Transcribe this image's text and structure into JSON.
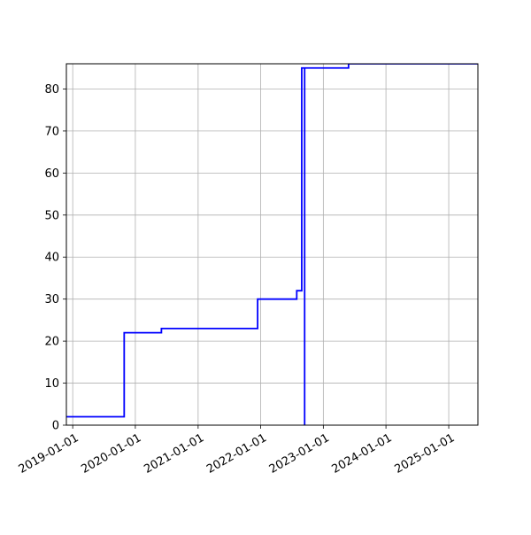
{
  "chart_data": {
    "type": "line",
    "line_style": "step",
    "title": "",
    "xlabel": "",
    "ylabel": "",
    "x_type": "date",
    "xlim": [
      "2018-11-25",
      "2025-06-20"
    ],
    "ylim": [
      0,
      86
    ],
    "x_ticks": [
      "2019-01-01",
      "2020-01-01",
      "2021-01-01",
      "2022-01-01",
      "2023-01-01",
      "2024-01-01",
      "2025-01-01"
    ],
    "y_ticks": [
      0,
      10,
      20,
      30,
      40,
      50,
      60,
      70,
      80
    ],
    "grid": true,
    "legend": "none",
    "series": [
      {
        "color": "#0000ff",
        "x": [
          "2018-11-25",
          "2019-10-28",
          "2020-06-01",
          "2021-12-14",
          "2022-07-30",
          "2022-08-28",
          "2022-09-14",
          "2022-09-14",
          "2023-05-28"
        ],
        "y": [
          2,
          22,
          23,
          30,
          32,
          85,
          0,
          85,
          86
        ]
      }
    ]
  }
}
